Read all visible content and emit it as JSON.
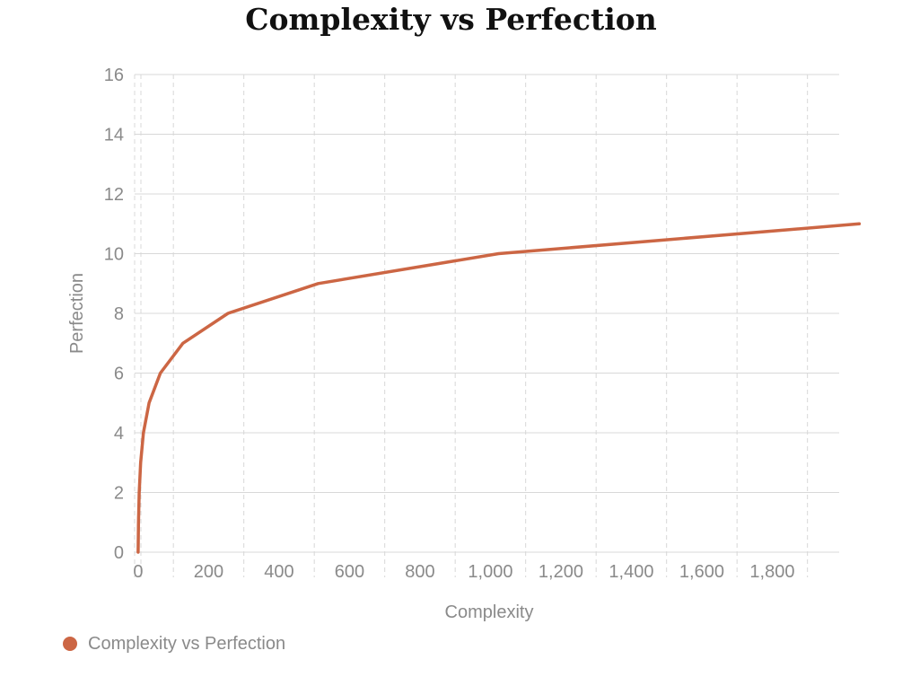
{
  "colors": {
    "series": "#cc6644",
    "grid": "#d8d8d8",
    "text": "#8a8a8a"
  },
  "chart_data": {
    "type": "line",
    "title": "Complexity vs Perfection",
    "xlabel": "Complexity",
    "ylabel": "Perfection",
    "xlim": [
      -10,
      1990
    ],
    "ylim": [
      0,
      16
    ],
    "x_ticks": [
      0,
      200,
      400,
      600,
      800,
      1000,
      1200,
      1400,
      1600,
      1800
    ],
    "x_tick_labels": [
      "0",
      "200",
      "400",
      "600",
      "800",
      "1,000",
      "1,200",
      "1,400",
      "1,600",
      "1,800"
    ],
    "y_ticks": [
      0,
      2,
      4,
      6,
      8,
      10,
      12,
      14,
      16
    ],
    "y_tick_labels": [
      "0",
      "2",
      "4",
      "6",
      "8",
      "10",
      "12",
      "14",
      "16"
    ],
    "grid": true,
    "legend": "bottom-left",
    "series": [
      {
        "name": "Complexity vs Perfection",
        "x": [
          0,
          1,
          3,
          7,
          15,
          31,
          63,
          127,
          255,
          511,
          1023,
          2047
        ],
        "y": [
          0,
          1,
          2,
          3,
          4,
          5,
          6,
          7,
          8,
          9,
          10,
          11
        ]
      }
    ]
  }
}
